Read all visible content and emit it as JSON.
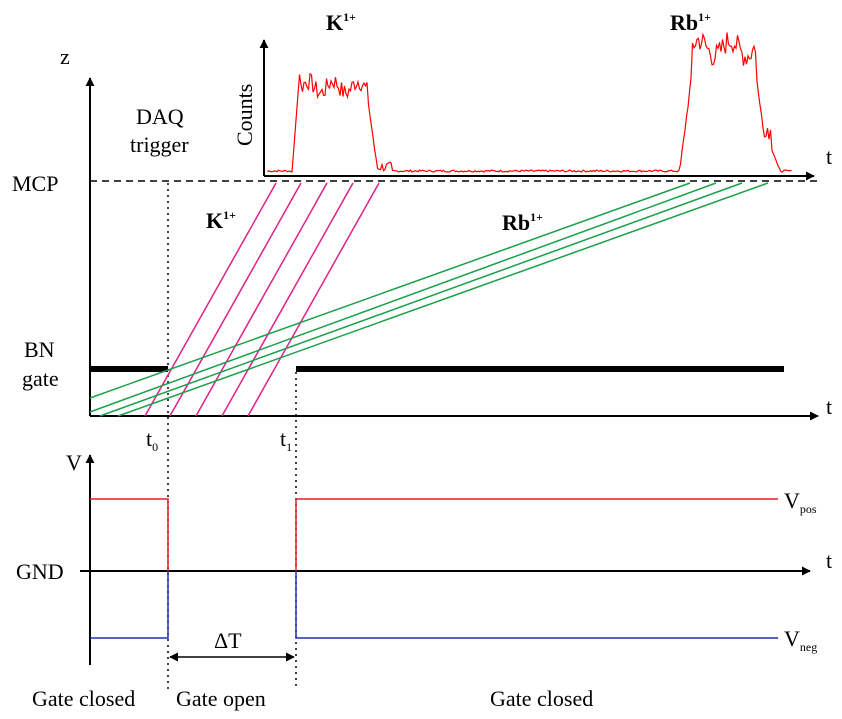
{
  "labels": {
    "z_axis": "z",
    "daq_line1": "DAQ",
    "daq_line2": "trigger",
    "mcp": "MCP",
    "bn_line1": "BN",
    "bn_line2": "gate",
    "t_axis_top": "t",
    "t_axis_spectrum": "t",
    "t_axis_voltage": "t",
    "counts": "Counts",
    "v_axis": "V",
    "gnd": "GND",
    "t0_base": "t",
    "t0_sub": "0",
    "t1_base": "t",
    "t1_sub": "1",
    "vpos_base": "V",
    "vpos_sub": "pos",
    "vneg_base": "V",
    "vneg_sub": "neg",
    "delta_t": "ΔT",
    "gate_closed_left": "Gate closed",
    "gate_open": "Gate open",
    "gate_closed_right": "Gate closed"
  },
  "ions": {
    "k": {
      "base": "K",
      "charge": "1+"
    },
    "rb": {
      "base": "Rb",
      "charge": "1+"
    }
  },
  "colors": {
    "k_trajectory": "#e0208c",
    "rb_trajectory": "#1aa04a",
    "spectrum": "#ff0000",
    "v_pos": "#e02020",
    "v_neg": "#2030b0"
  }
}
